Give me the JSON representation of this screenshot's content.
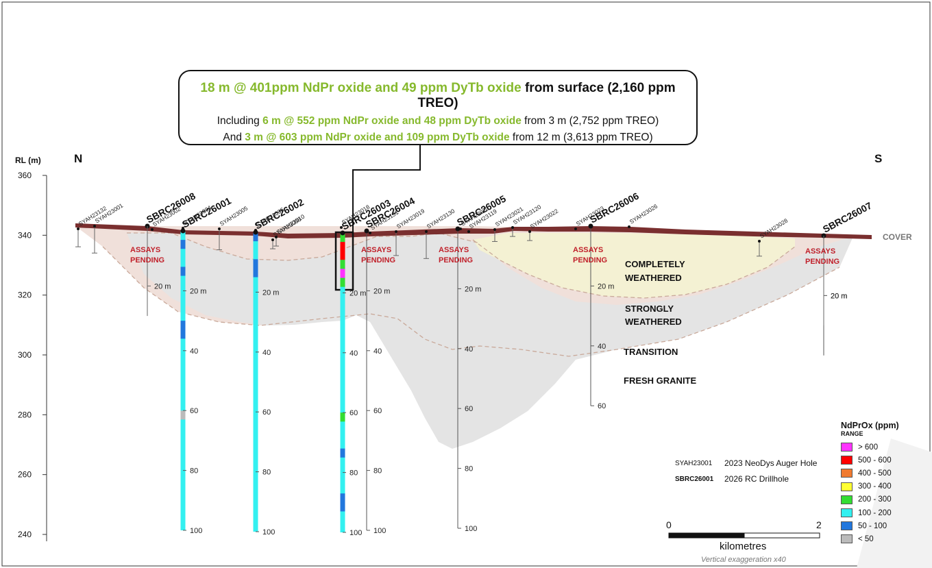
{
  "axis": {
    "label": "RL (m)",
    "ticks": [
      "360",
      "340",
      "320",
      "300",
      "280",
      "260",
      "240"
    ]
  },
  "compass": {
    "north": "N",
    "south": "S"
  },
  "callout": {
    "line1_green": "18 m @ 401ppm NdPr oxide and 49 ppm DyTb oxide",
    "line1_black": " from surface (2,160 ppm TREO)",
    "line2_prefix": "Including ",
    "line2_green": "6 m @ 552 ppm NdPr oxide and 48 ppm DyTb oxide",
    "line2_suffix": " from 3 m (2,752 ppm TREO)",
    "line3_prefix": "And ",
    "line3_green": "3 m @ 603 ppm NdPr oxide and 109 ppm DyTb oxide",
    "line3_suffix": " from 12 m (3,613 ppm TREO)"
  },
  "zones": {
    "cover": "COVER",
    "completely_weathered_1": "COMPLETELY",
    "completely_weathered_2": "WEATHERED",
    "strongly_weathered_1": "STRONGLY",
    "strongly_weathered_2": "WEATHERED",
    "transition": "TRANSITION",
    "fresh_granite": "FRESH GRANITE"
  },
  "assays_pending": [
    "ASSAYS",
    "PENDING"
  ],
  "rc_holes": [
    "SBRC26008",
    "SBRC26001",
    "SBRC26002",
    "SBRC26003",
    "SBRC26004",
    "SBRC26005",
    "SBRC26006",
    "SBRC26007"
  ],
  "auger_holes": [
    "SYAH23132",
    "SYAH23001",
    "SYAH23002",
    "SYAH23004",
    "SYAH23005",
    "SYAH23006",
    "SYAH23008",
    "SYAH23010",
    "SYAH23018",
    "SYAH23131",
    "SYAH23019",
    "SYAH23130",
    "SYAH23020",
    "SYAH23119",
    "SYAH23021",
    "SYAH23120",
    "SYAH23022",
    "SYAH23023",
    "SYAH23026",
    "SYAH23028"
  ],
  "depth_labels": {
    "d20": "20 m",
    "d40": "40",
    "d60": "60",
    "d80": "80",
    "d100": "100"
  },
  "legend": {
    "title": "NdPrOx (ppm)",
    "subtitle": "RANGE",
    "items": [
      {
        "label": "> 600",
        "color": "#ff33ff"
      },
      {
        "label": "500 - 600",
        "color": "#ff0000"
      },
      {
        "label": "400 - 500",
        "color": "#f07a30"
      },
      {
        "label": "300 - 400",
        "color": "#ffff33"
      },
      {
        "label": "200 - 300",
        "color": "#33dd33"
      },
      {
        "label": "100 - 200",
        "color": "#33f0f0"
      },
      {
        "label": "50 - 100",
        "color": "#2277dd"
      },
      {
        "label": "< 50",
        "color": "#bbbbbb"
      }
    ]
  },
  "key": {
    "auger_id": "SYAH23001",
    "auger_desc": "2023 NeoDys Auger Hole",
    "rc_id": "SBRC26001",
    "rc_desc": "2026 RC Drillhole"
  },
  "scale": {
    "start": "0",
    "end": "2",
    "unit": "kilometres",
    "note": "Vertical exaggeration x40"
  },
  "colors": {
    "cover": "#7a2f2f",
    "completely_weathered": "#f4f0d0",
    "strongly_weathered": "#f0e0da",
    "transition": "#e2e2e2",
    "assays_pending": "#c0202a",
    "callout_green": "#86b92d"
  }
}
